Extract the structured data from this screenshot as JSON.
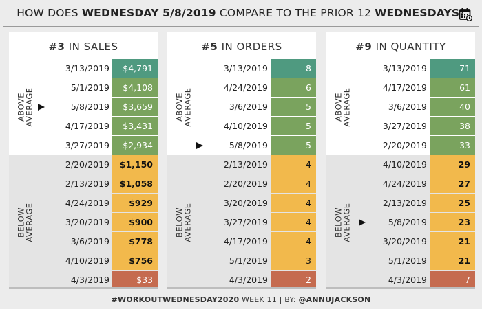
{
  "header": {
    "title_parts": [
      {
        "text": "HOW DOES ",
        "bold": false
      },
      {
        "text": "WEDNESDAY 5/8/2019",
        "bold": true
      },
      {
        "text": " COMPARE TO THE PRIOR 12 ",
        "bold": false
      },
      {
        "text": "WEDNESDAYS",
        "bold": true
      },
      {
        "text": "?",
        "bold": false
      }
    ],
    "icon": "calendar-icon"
  },
  "labels": {
    "above": [
      "ABOVE",
      "AVERAGE"
    ],
    "below": [
      "BELOW",
      "AVERAGE"
    ]
  },
  "colors": {
    "top": "#4f9a80",
    "above": "#7aa35e",
    "below": "#f2b94c",
    "bottom": "#c56b4f",
    "text_light": "#ffffff",
    "text_dark": "#111111"
  },
  "chart_data": [
    {
      "type": "table",
      "metric": "sales",
      "rank": "#3",
      "title_rest": " IN SALES",
      "above_count": 5,
      "highlight_date": "5/8/2019",
      "rows": [
        {
          "date": "3/13/2019",
          "label": "$4,791",
          "value": 4791
        },
        {
          "date": "5/1/2019",
          "label": "$4,108",
          "value": 4108
        },
        {
          "date": "5/8/2019",
          "label": "$3,659",
          "value": 3659
        },
        {
          "date": "4/17/2019",
          "label": "$3,431",
          "value": 3431
        },
        {
          "date": "3/27/2019",
          "label": "$2,934",
          "value": 2934
        },
        {
          "date": "2/20/2019",
          "label": "$1,150",
          "value": 1150
        },
        {
          "date": "2/13/2019",
          "label": "$1,058",
          "value": 1058
        },
        {
          "date": "4/24/2019",
          "label": "$929",
          "value": 929
        },
        {
          "date": "3/20/2019",
          "label": "$900",
          "value": 900
        },
        {
          "date": "3/6/2019",
          "label": "$778",
          "value": 778
        },
        {
          "date": "4/10/2019",
          "label": "$756",
          "value": 756
        },
        {
          "date": "4/3/2019",
          "label": "$33",
          "value": 33
        }
      ]
    },
    {
      "type": "table",
      "metric": "orders",
      "rank": "#5",
      "title_rest": " IN ORDERS",
      "above_count": 5,
      "highlight_date": "5/8/2019",
      "rows": [
        {
          "date": "3/13/2019",
          "label": "8",
          "value": 8
        },
        {
          "date": "4/24/2019",
          "label": "6",
          "value": 6
        },
        {
          "date": "3/6/2019",
          "label": "5",
          "value": 5
        },
        {
          "date": "4/10/2019",
          "label": "5",
          "value": 5
        },
        {
          "date": "5/8/2019",
          "label": "5",
          "value": 5
        },
        {
          "date": "2/13/2019",
          "label": "4",
          "value": 4
        },
        {
          "date": "2/20/2019",
          "label": "4",
          "value": 4
        },
        {
          "date": "3/20/2019",
          "label": "4",
          "value": 4
        },
        {
          "date": "3/27/2019",
          "label": "4",
          "value": 4
        },
        {
          "date": "4/17/2019",
          "label": "4",
          "value": 4
        },
        {
          "date": "5/1/2019",
          "label": "3",
          "value": 3
        },
        {
          "date": "4/3/2019",
          "label": "2",
          "value": 2
        }
      ]
    },
    {
      "type": "table",
      "metric": "quantity",
      "rank": "#9",
      "title_rest": " IN QUANTITY",
      "above_count": 5,
      "highlight_date": "5/8/2019",
      "rows": [
        {
          "date": "3/13/2019",
          "label": "71",
          "value": 71
        },
        {
          "date": "4/17/2019",
          "label": "61",
          "value": 61
        },
        {
          "date": "3/6/2019",
          "label": "40",
          "value": 40
        },
        {
          "date": "3/27/2019",
          "label": "38",
          "value": 38
        },
        {
          "date": "2/20/2019",
          "label": "33",
          "value": 33
        },
        {
          "date": "4/10/2019",
          "label": "29",
          "value": 29
        },
        {
          "date": "4/24/2019",
          "label": "27",
          "value": 27
        },
        {
          "date": "2/13/2019",
          "label": "25",
          "value": 25
        },
        {
          "date": "5/8/2019",
          "label": "23",
          "value": 23
        },
        {
          "date": "3/20/2019",
          "label": "21",
          "value": 21
        },
        {
          "date": "5/1/2019",
          "label": "21",
          "value": 21
        },
        {
          "date": "4/3/2019",
          "label": "7",
          "value": 7
        }
      ]
    }
  ],
  "footer": {
    "parts": [
      {
        "text": "#WORKOUTWEDNESDAY2020",
        "bold": true
      },
      {
        "text": " WEEK 11 | BY: ",
        "bold": false
      },
      {
        "text": "@ANNUJACKSON",
        "bold": true
      }
    ]
  }
}
